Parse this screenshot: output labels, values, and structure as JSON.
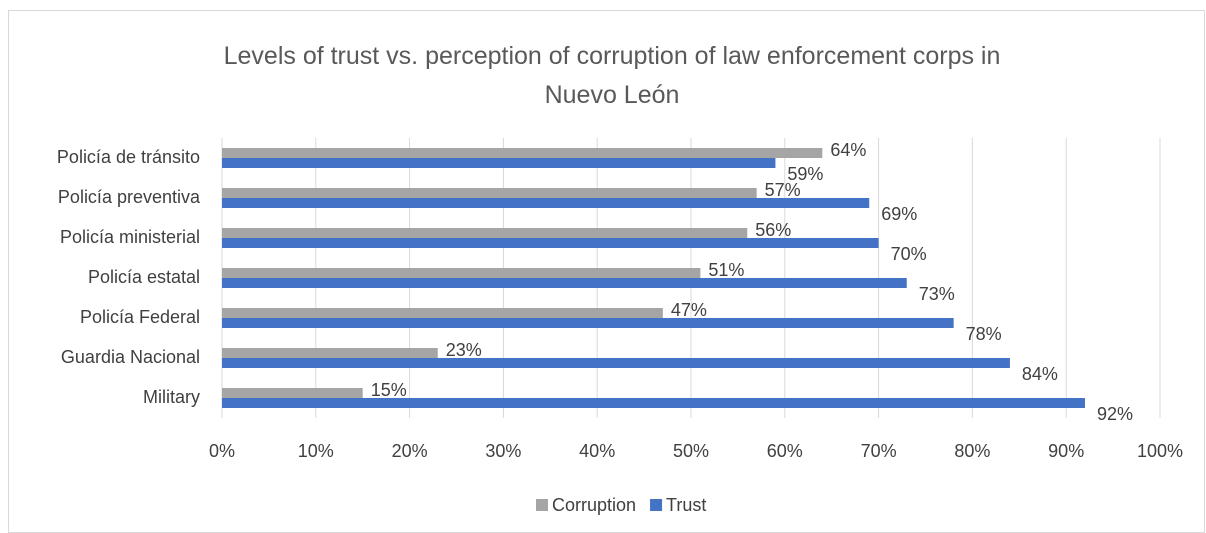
{
  "chart_data": {
    "type": "hbar",
    "title": "Levels of trust vs. perception of corruption of law enforcement corps in Nuevo León",
    "categories": [
      "Policía de tránsito",
      "Policía preventiva",
      "Policía ministerial",
      "Policía estatal",
      "Policía Federal",
      "Guardia Nacional",
      "Military"
    ],
    "series": [
      {
        "name": "Corruption",
        "color": "#a5a5a5",
        "values": [
          64,
          57,
          56,
          51,
          47,
          23,
          15
        ],
        "value_labels": [
          "64%",
          "57%",
          "56%",
          "51%",
          "47%",
          "23%",
          "15%"
        ]
      },
      {
        "name": "Trust",
        "color": "#4472c4",
        "values": [
          59,
          69,
          70,
          73,
          78,
          84,
          92
        ],
        "value_labels": [
          "59%",
          "69%",
          "70%",
          "73%",
          "78%",
          "84%",
          "92%"
        ]
      }
    ],
    "xlim": [
      0,
      100
    ],
    "xticks": [
      {
        "value": 0,
        "label": "0%"
      },
      {
        "value": 10,
        "label": "10%"
      },
      {
        "value": 20,
        "label": "20%"
      },
      {
        "value": 30,
        "label": "30%"
      },
      {
        "value": 40,
        "label": "40%"
      },
      {
        "value": 50,
        "label": "50%"
      },
      {
        "value": 60,
        "label": "60%"
      },
      {
        "value": 70,
        "label": "70%"
      },
      {
        "value": 80,
        "label": "80%"
      },
      {
        "value": 90,
        "label": "90%"
      },
      {
        "value": 100,
        "label": "100%"
      }
    ],
    "grid": true,
    "legend": "bottom"
  }
}
